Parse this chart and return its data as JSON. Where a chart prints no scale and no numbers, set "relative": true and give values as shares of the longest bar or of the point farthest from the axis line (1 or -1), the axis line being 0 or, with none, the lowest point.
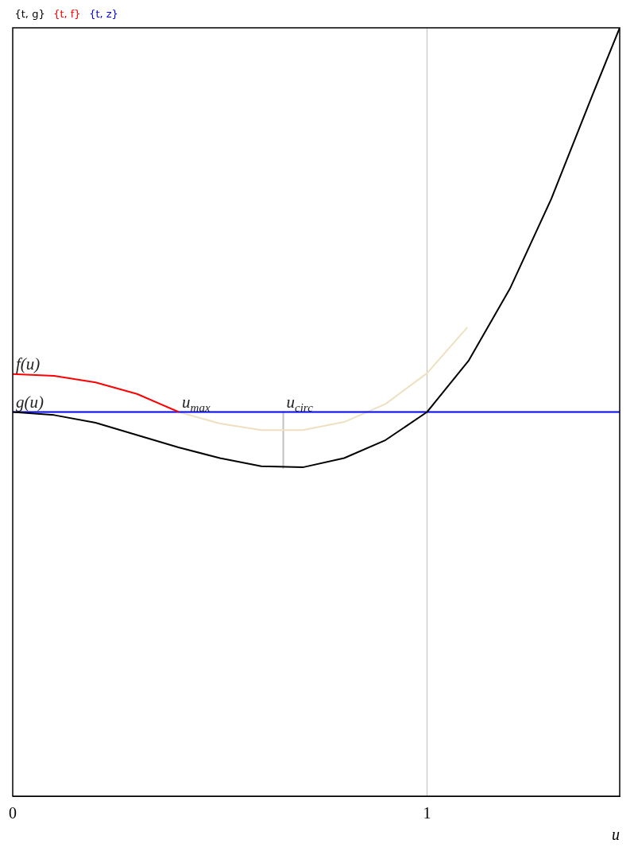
{
  "chart_data": {
    "type": "line",
    "relative": true,
    "xlabel": "u",
    "xlim": [
      0,
      1.465
    ],
    "xticks": [
      {
        "value": 0,
        "label": "0"
      },
      {
        "value": 1,
        "label": "1"
      }
    ],
    "tick_labels": "x",
    "grid": false,
    "legend": "top left",
    "marker": "none",
    "line_style": "solid",
    "series": [
      {
        "name": "{t, g}",
        "color": "#000000",
        "x": [
          0,
          0.1,
          0.2,
          0.3,
          0.4,
          0.5,
          0.6,
          0.7,
          0.8,
          0.9,
          1.0,
          1.1,
          1.2,
          1.3,
          1.4,
          1.465
        ],
        "values": [
          0,
          -0.008,
          -0.028,
          -0.06,
          -0.092,
          -0.12,
          -0.141,
          -0.144,
          -0.12,
          -0.073,
          0,
          0.133,
          0.321,
          0.555,
          0.827,
          1.0
        ]
      },
      {
        "name": "{t, f}",
        "color": "#ff0000",
        "x": [
          0,
          0.1,
          0.2,
          0.3,
          0.401
        ],
        "values": [
          0.099,
          0.094,
          0.077,
          0.047,
          0
        ]
      },
      {
        "name": "{t, z}",
        "color": "#0000ff",
        "x": [
          0,
          1.465
        ],
        "values": [
          0,
          0
        ]
      },
      {
        "color": "#eee0c0",
        "x": [
          0.401,
          0.5,
          0.6,
          0.7,
          0.8,
          0.9,
          1.0,
          1.097
        ],
        "values": [
          0,
          -0.03,
          -0.047,
          -0.047,
          -0.026,
          0.021,
          0.101,
          0.22
        ]
      },
      {
        "color": "#c0c0c0",
        "x": [
          0.653,
          0.653
        ],
        "values": [
          0,
          -0.146
        ]
      }
    ],
    "ref_lines": [
      {
        "axis": "x",
        "value": 1,
        "color": "#c0c0c0"
      }
    ],
    "annotations": [
      {
        "text": "f(u)",
        "x": 0,
        "y": 0.099
      },
      {
        "text": "g(u)",
        "x": 0,
        "y": 0
      },
      {
        "text": "u$_{max}$",
        "x": 0.401,
        "y": 0
      },
      {
        "text": "u$_{circ}$",
        "x": 0.653,
        "y": 0
      }
    ]
  }
}
